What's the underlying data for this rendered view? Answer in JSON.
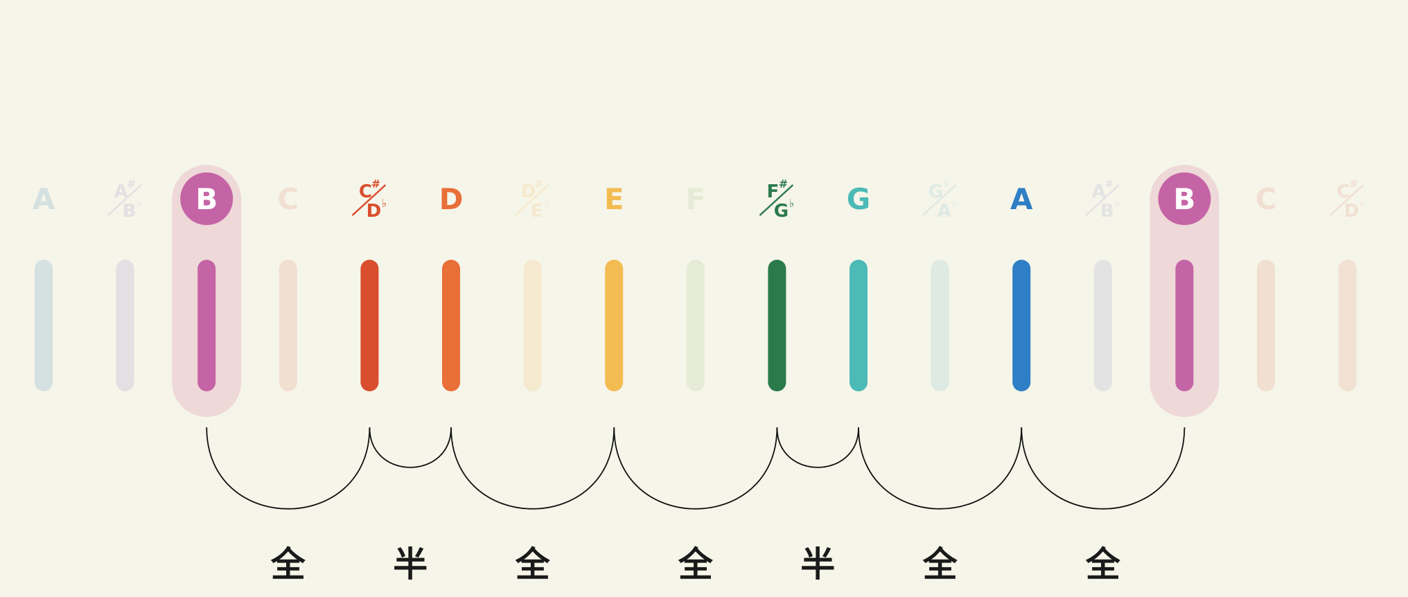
{
  "notes": [
    {
      "label": "A",
      "acc": null,
      "color": "#5a9cc0",
      "active": false
    },
    {
      "label": null,
      "acc": {
        "top": "A",
        "topSign": "#",
        "bottom": "B",
        "bottomSign": "♭"
      },
      "color": "#9a98c8",
      "active": false
    },
    {
      "label": "B",
      "acc": null,
      "color": "#c464a6",
      "active": true,
      "root": true
    },
    {
      "label": "C",
      "acc": null,
      "color": "#e0907e",
      "active": false
    },
    {
      "label": null,
      "acc": {
        "top": "C",
        "topSign": "#",
        "bottom": "D",
        "bottomSign": "♭"
      },
      "color": "#d94e2e",
      "active": true
    },
    {
      "label": "D",
      "acc": null,
      "color": "#e86f38",
      "active": true
    },
    {
      "label": null,
      "acc": {
        "top": "D",
        "topSign": "#",
        "bottom": "E",
        "bottomSign": "♭"
      },
      "color": "#f0bf70",
      "active": false
    },
    {
      "label": "E",
      "acc": null,
      "color": "#f3bc52",
      "active": true
    },
    {
      "label": "F",
      "acc": null,
      "color": "#a8c890",
      "active": false
    },
    {
      "label": null,
      "acc": {
        "top": "F",
        "topSign": "#",
        "bottom": "G",
        "bottomSign": "♭"
      },
      "color": "#2a7a4c",
      "active": true
    },
    {
      "label": "G",
      "acc": null,
      "color": "#4cbab6",
      "active": true
    },
    {
      "label": null,
      "acc": {
        "top": "G",
        "topSign": "♯",
        "bottom": "A",
        "bottomSign": "♭"
      },
      "color": "#8ac3cc",
      "active": false
    },
    {
      "label": "A",
      "acc": null,
      "color": "#2e7fc6",
      "active": true
    },
    {
      "label": null,
      "acc": {
        "top": "A",
        "topSign": "#",
        "bottom": "B",
        "bottomSign": "♭"
      },
      "color": "#a4a2d0",
      "active": false
    },
    {
      "label": "B",
      "acc": null,
      "color": "#c464a6",
      "active": true,
      "root": true
    },
    {
      "label": "C",
      "acc": null,
      "color": "#e0907e",
      "active": false
    },
    {
      "label": null,
      "acc": {
        "top": "C",
        "topSign": "#",
        "bottom": "D",
        "bottomSign": "♭"
      },
      "color": "#e09a84",
      "active": false
    }
  ],
  "intervals": [
    {
      "from": 2,
      "to": 4,
      "label": "全"
    },
    {
      "from": 4,
      "to": 5,
      "label": "半"
    },
    {
      "from": 5,
      "to": 7,
      "label": "全"
    },
    {
      "from": 7,
      "to": 9,
      "label": "全"
    },
    {
      "from": 9,
      "to": 10,
      "label": "半"
    },
    {
      "from": 10,
      "to": 12,
      "label": "全"
    },
    {
      "from": 12,
      "to": 14,
      "label": "全"
    }
  ],
  "colors": {
    "background": "#f6f5e9",
    "root_highlight": "#eed8d8",
    "text": "#1a1a1a",
    "arc": "#111111"
  }
}
